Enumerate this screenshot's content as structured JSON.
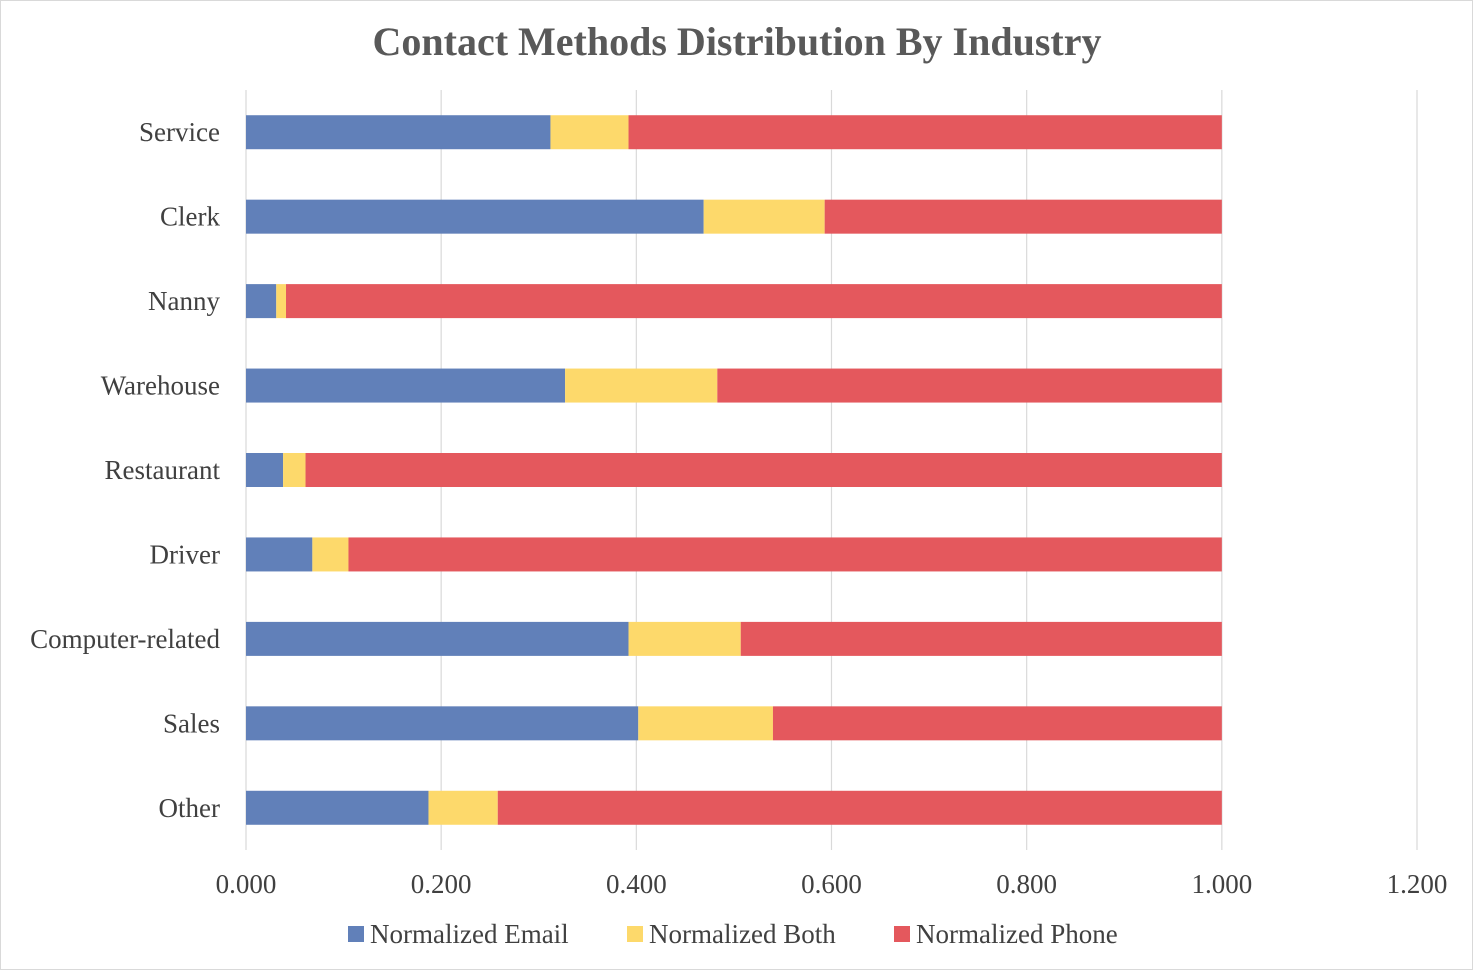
{
  "chart_data": {
    "type": "bar",
    "orientation": "horizontal",
    "stacked": true,
    "title": "Contact Methods Distribution By Industry",
    "xlabel": "",
    "ylabel": "",
    "categories": [
      "Service",
      "Clerk",
      "Nanny",
      "Warehouse",
      "Restaurant",
      "Driver",
      "Computer-related",
      "Sales",
      "Other"
    ],
    "series": [
      {
        "name": "Normalized Email",
        "color": "#6180b9",
        "values": [
          0.312,
          0.469,
          0.031,
          0.327,
          0.038,
          0.068,
          0.392,
          0.402,
          0.187
        ]
      },
      {
        "name": "Normalized Both",
        "color": "#fdd96b",
        "values": [
          0.08,
          0.124,
          0.01,
          0.156,
          0.023,
          0.037,
          0.115,
          0.138,
          0.071
        ]
      },
      {
        "name": "Normalized Phone",
        "color": "#e4585d",
        "values": [
          0.608,
          0.407,
          0.959,
          0.517,
          0.939,
          0.895,
          0.493,
          0.46,
          0.742
        ]
      }
    ],
    "xlim": [
      0,
      1.2
    ],
    "xticks": [
      "0.000",
      "0.200",
      "0.400",
      "0.600",
      "0.800",
      "1.000",
      "1.200"
    ],
    "grid": "vertical",
    "legend_position": "bottom"
  }
}
